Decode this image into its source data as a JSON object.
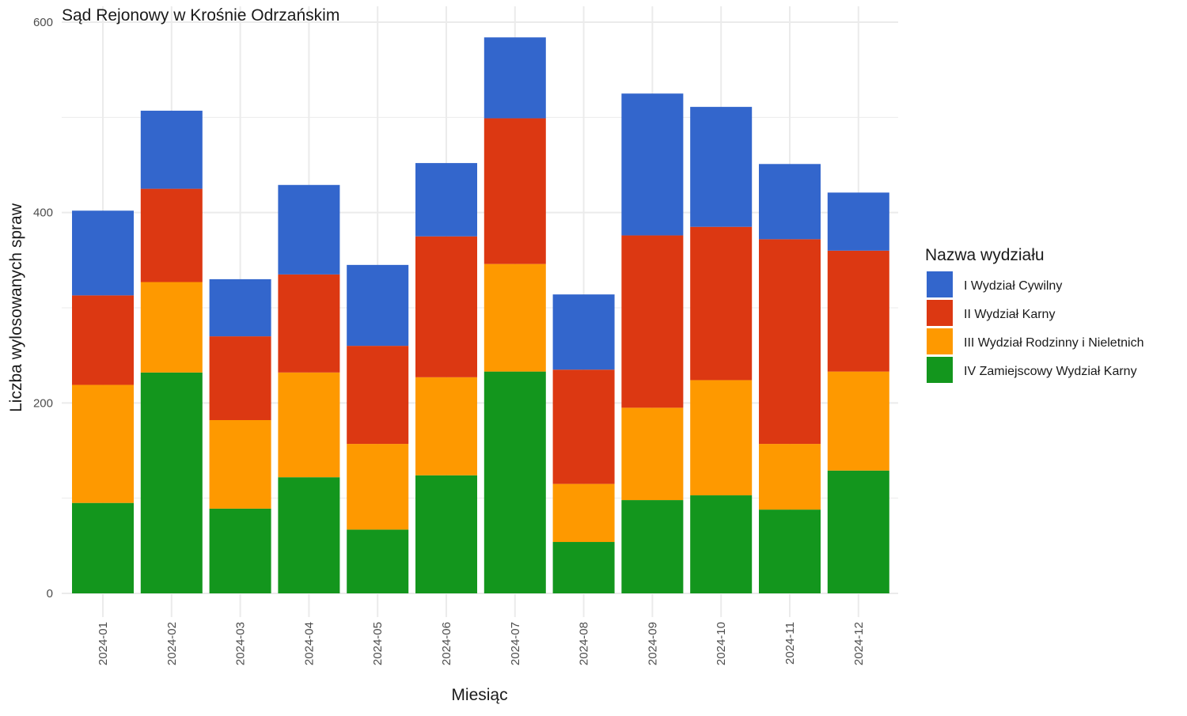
{
  "chart_data": {
    "type": "bar",
    "stacked": true,
    "title": "Sąd Rejonowy w Krośnie Odrzańskim",
    "xlabel": "Miesiąc",
    "ylabel": "Liczba wylosowanych spraw",
    "ylim": [
      0,
      600
    ],
    "yticks": [
      0,
      200,
      400,
      600
    ],
    "grid": true,
    "legend": {
      "title": "Nazwa wydziału",
      "position": "right"
    },
    "categories": [
      "2024-01",
      "2024-02",
      "2024-03",
      "2024-04",
      "2024-05",
      "2024-06",
      "2024-07",
      "2024-08",
      "2024-09",
      "2024-10",
      "2024-11",
      "2024-12"
    ],
    "series": [
      {
        "name": "IV Zamiejscowy Wydział Karny",
        "color": "#13961d",
        "values": [
          95,
          232,
          89,
          122,
          67,
          124,
          233,
          54,
          98,
          103,
          88,
          129
        ]
      },
      {
        "name": "III Wydział Rodzinny i Nieletnich",
        "color": "#fe9900",
        "values": [
          124,
          95,
          93,
          110,
          90,
          103,
          113,
          61,
          97,
          121,
          69,
          104
        ]
      },
      {
        "name": "II Wydział Karny",
        "color": "#dc3812",
        "values": [
          94,
          98,
          88,
          103,
          103,
          148,
          153,
          120,
          181,
          161,
          215,
          127
        ]
      },
      {
        "name": "I Wydział Cywilny",
        "color": "#3366cc",
        "values": [
          89,
          82,
          60,
          94,
          85,
          77,
          85,
          79,
          149,
          126,
          79,
          61
        ]
      }
    ],
    "legend_order": [
      "I Wydział Cywilny",
      "II Wydział Karny",
      "III Wydział Rodzinny i Nieletnich",
      "IV Zamiejscowy Wydział Karny"
    ]
  }
}
